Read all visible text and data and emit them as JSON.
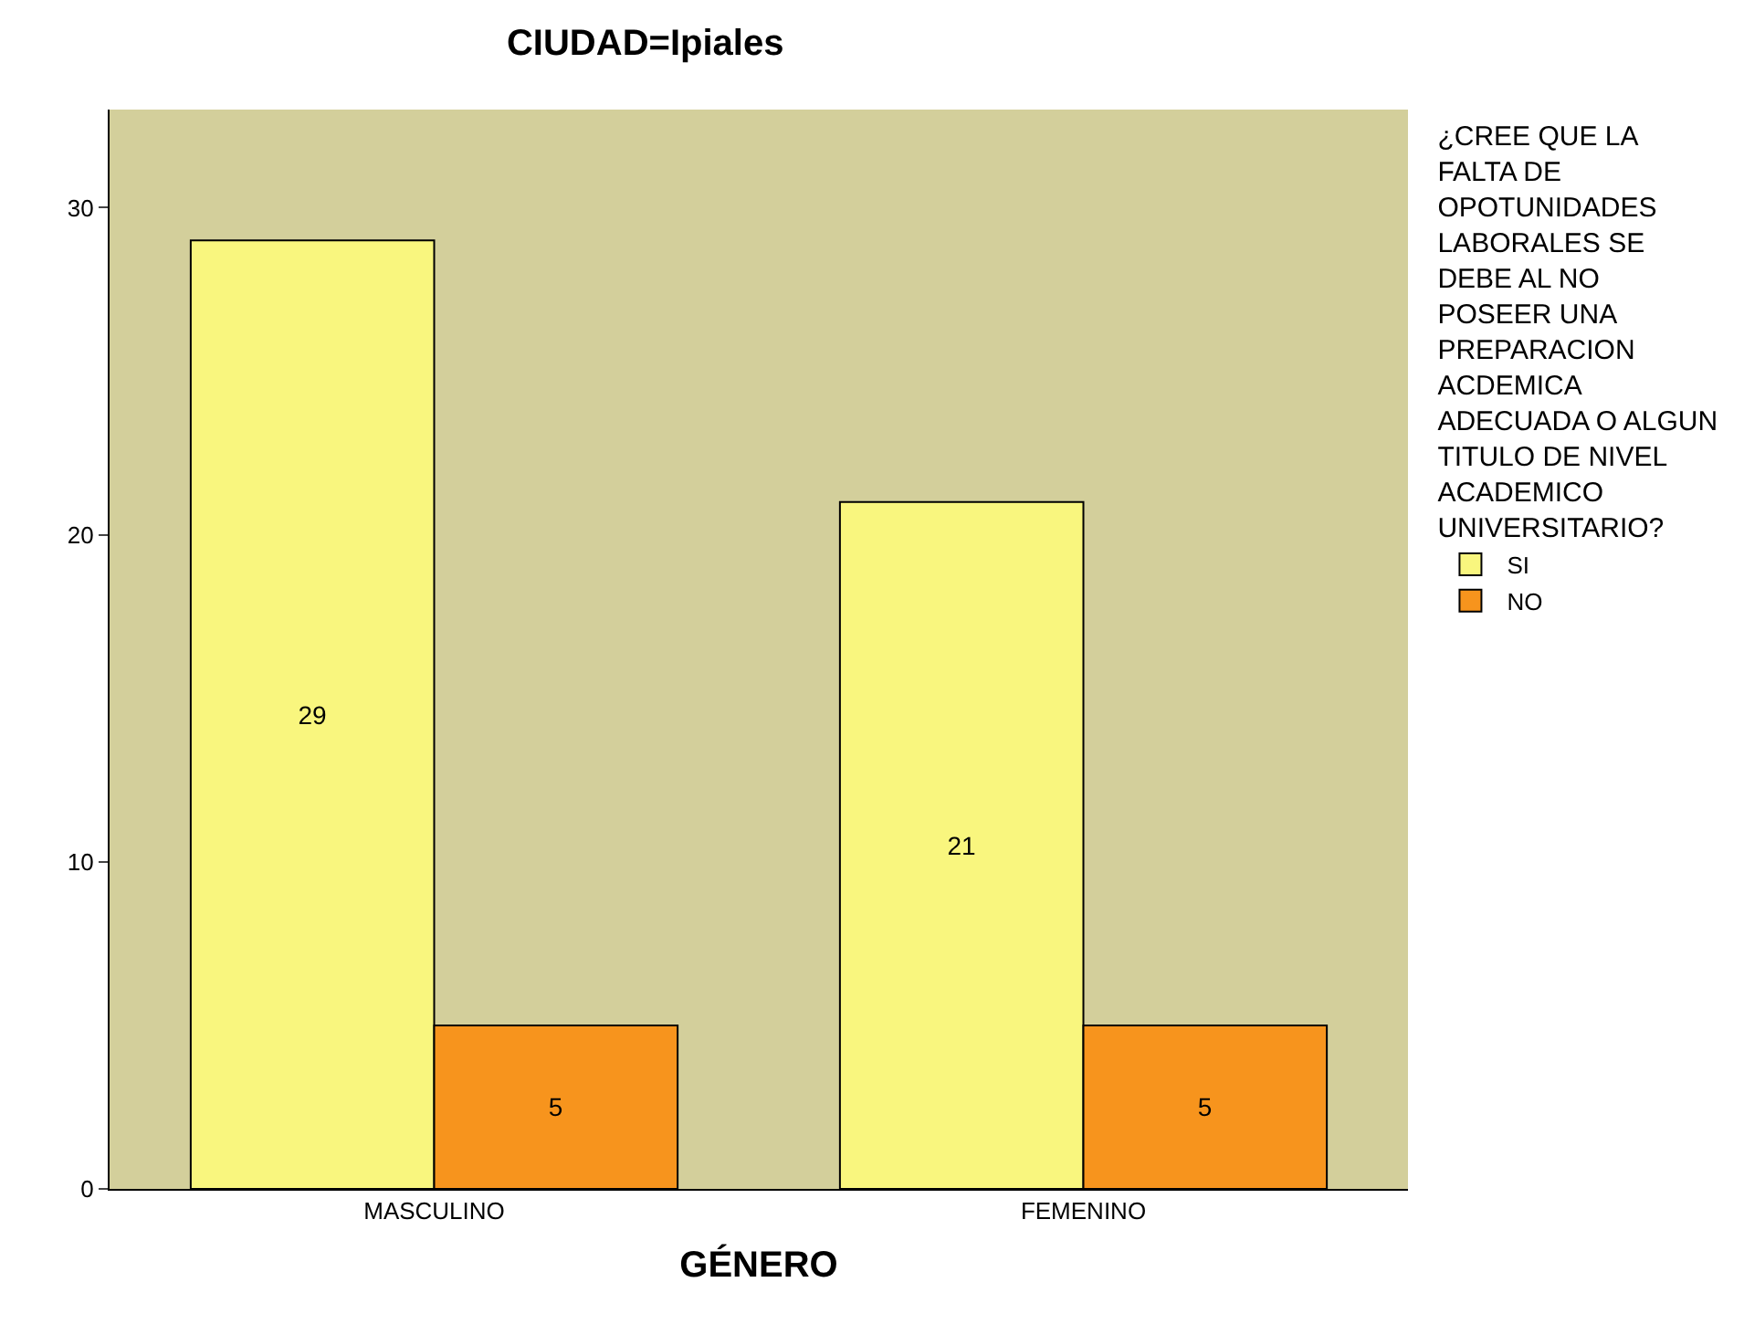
{
  "chart_data": {
    "type": "bar",
    "title": "CIUDAD=Ipiales",
    "xlabel": "GÉNERO",
    "legend_title": "¿CREE QUE LA FALTA DE OPOTUNIDADES LABORALES SE DEBE AL NO POSEER UNA PREPARACION ACDEMICA ADECUADA O ALGUN TITULO DE NIVEL ACADEMICO UNIVERSITARIO?",
    "categories": [
      "MASCULINO",
      "FEMENINO"
    ],
    "series": [
      {
        "name": "SI",
        "color": "#f9f67e",
        "values": [
          29,
          21
        ]
      },
      {
        "name": "NO",
        "color": "#f7941d",
        "values": [
          5,
          5
        ]
      }
    ],
    "ylim": [
      0,
      33
    ],
    "yticks": [
      0,
      10,
      20,
      30
    ],
    "grid": false,
    "legend": "right",
    "data_labels": true
  }
}
